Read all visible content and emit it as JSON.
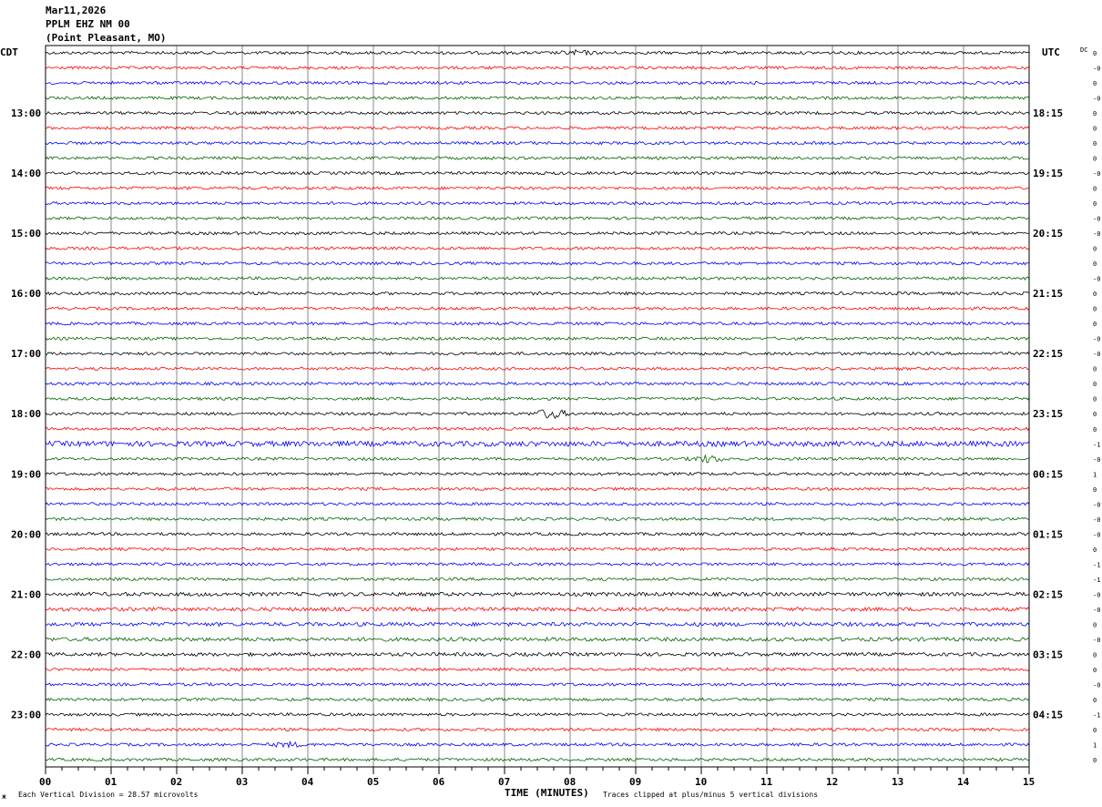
{
  "header": {
    "date": "Mar11,2026",
    "station": "PPLM EHZ NM 00",
    "location": "(Point Pleasant, MO)"
  },
  "chart_data": {
    "type": "line",
    "subtype": "helicorder",
    "left_axis_label": "CDT",
    "right_axis_label": "UTC",
    "dc_label": "DC",
    "left_hour_labels": [
      "13:00",
      "14:00",
      "15:00",
      "16:00",
      "17:00",
      "18:00",
      "19:00",
      "20:00",
      "21:00",
      "22:00",
      "23:00"
    ],
    "right_hour_labels": [
      "18:15",
      "19:15",
      "20:15",
      "21:15",
      "22:15",
      "23:15",
      "00:15",
      "01:15",
      "02:15",
      "03:15",
      "04:15"
    ],
    "traces_per_hour": 4,
    "trace_count": 48,
    "trace_colors": [
      "#000000",
      "#ff0000",
      "#0000ff",
      "#006400"
    ],
    "dc_offsets": [
      "0",
      "-0",
      "0",
      "-0",
      "0",
      "0",
      "0",
      "0",
      "-0",
      "0",
      "0",
      "-0",
      "-0",
      "0",
      "0",
      "-0",
      "0",
      "0",
      "0",
      "-0",
      "-0",
      "0",
      "0",
      "0",
      "0",
      "0",
      "-1",
      "-0",
      "1",
      "0",
      "-0",
      "-0",
      "-0",
      "0",
      "-1",
      "-1",
      "-0",
      "-0",
      "0",
      "-0",
      "0",
      "0",
      "-0",
      "0",
      "-1",
      "0",
      "1",
      "0"
    ],
    "x_ticks": [
      "00",
      "01",
      "02",
      "03",
      "04",
      "05",
      "06",
      "07",
      "08",
      "09",
      "10",
      "11",
      "12",
      "13",
      "14",
      "15"
    ],
    "xlim": [
      0,
      15
    ],
    "xlabel": "TIME (MINUTES)",
    "grid": true,
    "scale_note": "Each Vertical Division =   28.57 microvolts",
    "clip_note": "Traces clipped at plus/minus 5 vertical divisions"
  }
}
